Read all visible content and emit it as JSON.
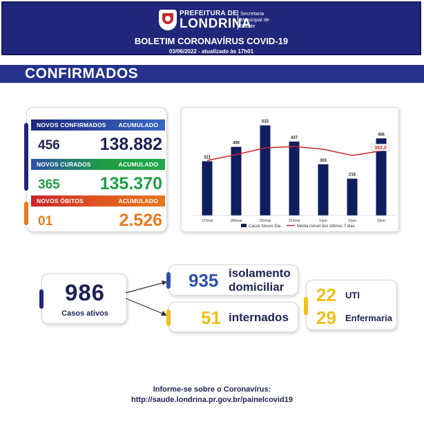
{
  "colors": {
    "navy": "#20277a",
    "section": "#24318d",
    "blue_band": "#2f50a8",
    "green_band": "#1e9e45",
    "green_text": "#1e9e45",
    "orange_band": "#e4761c",
    "red_band": "#c8262a",
    "orange_text": "#ea7a1d",
    "yellow": "#f0bf1a",
    "blue_num": "#2f50a8",
    "bar": "#0f1e5c",
    "line": "#c8262a"
  },
  "header": {
    "logo_small": "PREFEITURA DE",
    "logo_big": "LONDRINA",
    "logo_sub": "Secretaria Municipal de Saúde",
    "title": "BOLETIM CORONAVÍRUS COVID-19",
    "date": "03/06/2022 - atualizado às 17h01"
  },
  "section": {
    "title": "CONFIRMADOS"
  },
  "stats": {
    "confirmed": {
      "label": "NOVOS CONFIRMADOS",
      "acc_label": "ACUMULADO",
      "new": "456",
      "total": "138.882"
    },
    "recovered": {
      "label": "NOVOS CURADOS",
      "acc_label": "ACUMULADO",
      "new": "365",
      "total": "135.370"
    },
    "deaths": {
      "label": "NOVOS ÓBITOS",
      "acc_label": "ACUMULADO",
      "new": "01",
      "total": "2.526"
    }
  },
  "chart_data": {
    "type": "bar",
    "categories": [
      "27/mai",
      "28/mai",
      "30/mai",
      "31/mai",
      "1/jun",
      "2/jun",
      "3/jun"
    ],
    "series": [
      {
        "name": "Casos Novos Dia",
        "type": "bar",
        "values": [
          321,
          406,
          533,
          437,
          303,
          218,
          456
        ]
      },
      {
        "name": "Média móvel dos últimos 7 dias",
        "type": "line",
        "values": [
          325,
          360,
          400,
          408,
          392,
          355,
          382
        ]
      }
    ],
    "data_labels": [
      "321",
      "406",
      "533",
      "437",
      "303",
      "218",
      "456"
    ],
    "highlight_label": "382,0",
    "ylim": [
      0,
      580
    ],
    "legend_position": "bottom"
  },
  "active": {
    "number": "986",
    "label": "Casos ativos"
  },
  "isolation": {
    "number": "935",
    "label_line1": "isolamento",
    "label_line2": "domiciliar"
  },
  "hospitalized": {
    "number": "51",
    "label": "internados"
  },
  "icu": {
    "number": "22",
    "label": "UTI"
  },
  "ward": {
    "number": "29",
    "label": "Enfermaria"
  },
  "footer": {
    "line1": "Informe-se sobre o Coronavírus:",
    "line2": "http://saude.londrina.pr.gov.br/painelcovid19"
  }
}
